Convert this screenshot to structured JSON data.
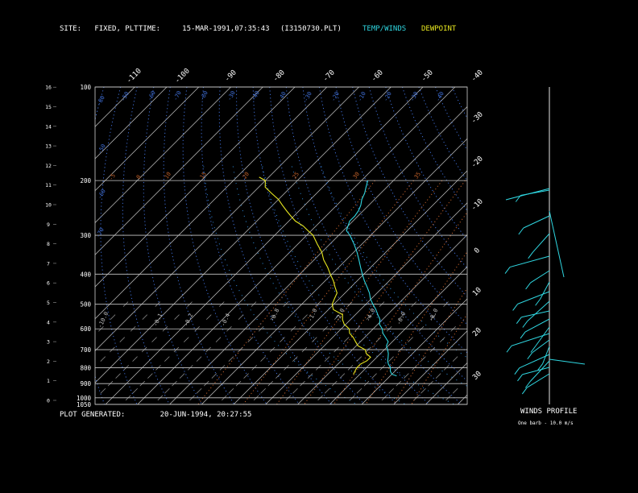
{
  "header": {
    "site": "SITE:   FIXED, PLT",
    "time": "TIME:     15-MAR-1991,07:35:43",
    "file": "(I3150730.PLT)",
    "temp_winds": "TEMP/WINDS",
    "dewpoint": "DEWPOINT"
  },
  "footer": {
    "generated": "PLOT GENERATED:        20-JUN-1994, 20:27:55",
    "winds_profile": "WINDS PROFILE",
    "barb_note": "One barb - 10.0 m/s"
  },
  "colors": {
    "background": "#000000",
    "temperature": "#2fd6e0",
    "dewpoint": "#e8e820",
    "isobar": "#c8c8c8",
    "isotherm": "#c8c8c8",
    "dry_adiabat": "#3f6fd8",
    "moist_adiabat": "#2f8fe0",
    "mixing_ratio": "#c0602a",
    "text": "#ffffff"
  },
  "chart_data": {
    "type": "line",
    "title": "",
    "skew_t": true,
    "pressure_axis": {
      "ticks": [
        100,
        200,
        300,
        400,
        500,
        600,
        700,
        800,
        900,
        1000,
        1050
      ],
      "tick_labels": [
        "100",
        "200",
        "300",
        "400",
        "500",
        "600",
        "700",
        "800",
        "900",
        "1000",
        "1050"
      ]
    },
    "height_axis": {
      "unit": "km",
      "ticks": [
        0,
        1,
        2,
        3,
        4,
        5,
        6,
        7,
        8,
        9,
        10,
        11,
        12,
        13,
        14,
        15,
        16
      ],
      "tick_labels": [
        "0",
        "1",
        "2",
        "3",
        "4",
        "5",
        "6",
        "7",
        "8",
        "9",
        "10",
        "11",
        "12",
        "13",
        "14",
        "15",
        "16"
      ]
    },
    "isotherm_labels_top": [
      "-110",
      "-100",
      "-90",
      "-80",
      "-70",
      "-60",
      "-50",
      "-40"
    ],
    "isotherm_labels_right": [
      "-30",
      "-20",
      "-10",
      "0",
      "10",
      "20",
      "30"
    ],
    "dry_adiabat_labels": [
      "-80",
      "-50",
      "-60",
      "-70",
      "-60",
      "-30",
      "-40",
      "-40",
      "-30",
      "-20",
      "-10",
      "-20",
      "-30",
      "-40",
      "-50",
      "-60",
      "-70"
    ],
    "mixing_ratio_labels": [
      "-5",
      "0",
      "10",
      "15",
      "20",
      "25",
      "30",
      "35"
    ],
    "moist_labels": [
      "-0.1",
      "-0.2",
      "-0.4",
      "-0.8",
      "-1.0",
      "-2.0",
      "-4.0",
      "-6.0",
      "-8.0",
      "-10.0"
    ],
    "series": [
      {
        "name": "TEMP/WINDS",
        "points": [
          [
            850,
            12
          ],
          [
            840,
            10
          ],
          [
            820,
            8.5
          ],
          [
            800,
            7.5
          ],
          [
            780,
            5.8
          ],
          [
            760,
            4.5
          ],
          [
            740,
            3.5
          ],
          [
            720,
            2.4
          ],
          [
            700,
            1
          ],
          [
            680,
            -0.6
          ],
          [
            660,
            -1.3
          ],
          [
            640,
            -3.4
          ],
          [
            620,
            -5.6
          ],
          [
            600,
            -7.2
          ],
          [
            580,
            -9.5
          ],
          [
            560,
            -10.8
          ],
          [
            540,
            -13
          ],
          [
            520,
            -15.2
          ],
          [
            500,
            -17.8
          ],
          [
            480,
            -20.3
          ],
          [
            460,
            -22.4
          ],
          [
            440,
            -25
          ],
          [
            420,
            -27.8
          ],
          [
            400,
            -30.5
          ],
          [
            380,
            -33.2
          ],
          [
            360,
            -36
          ],
          [
            340,
            -39
          ],
          [
            320,
            -42.5
          ],
          [
            300,
            -46.5
          ],
          [
            290,
            -49
          ],
          [
            280,
            -50
          ],
          [
            270,
            -51
          ],
          [
            260,
            -51
          ],
          [
            250,
            -51.5
          ],
          [
            240,
            -52.5
          ],
          [
            230,
            -54
          ],
          [
            220,
            -55
          ],
          [
            210,
            -56.5
          ],
          [
            200,
            -58
          ]
        ]
      },
      {
        "name": "DEWPOINT",
        "points": [
          [
            840,
            -2
          ],
          [
            800,
            -3
          ],
          [
            780,
            -3
          ],
          [
            760,
            -2
          ],
          [
            740,
            -2
          ],
          [
            720,
            -4.5
          ],
          [
            700,
            -6
          ],
          [
            680,
            -9.5
          ],
          [
            660,
            -11.5
          ],
          [
            640,
            -13.5
          ],
          [
            620,
            -16
          ],
          [
            600,
            -17.5
          ],
          [
            580,
            -20.5
          ],
          [
            560,
            -22.5
          ],
          [
            540,
            -24
          ],
          [
            520,
            -28.5
          ],
          [
            500,
            -30.5
          ],
          [
            480,
            -31.5
          ],
          [
            460,
            -32.5
          ],
          [
            440,
            -35
          ],
          [
            420,
            -37.5
          ],
          [
            400,
            -40.5
          ],
          [
            380,
            -43.5
          ],
          [
            360,
            -47
          ],
          [
            340,
            -50
          ],
          [
            320,
            -54
          ],
          [
            300,
            -58
          ],
          [
            290,
            -61
          ],
          [
            280,
            -64
          ],
          [
            270,
            -68
          ],
          [
            260,
            -71
          ],
          [
            250,
            -74
          ],
          [
            240,
            -77
          ],
          [
            230,
            -80
          ],
          [
            220,
            -84
          ],
          [
            210,
            -88
          ],
          [
            200,
            -90
          ],
          [
            195,
            -93
          ]
        ]
      }
    ],
    "winds_profile_barbs": 28
  }
}
